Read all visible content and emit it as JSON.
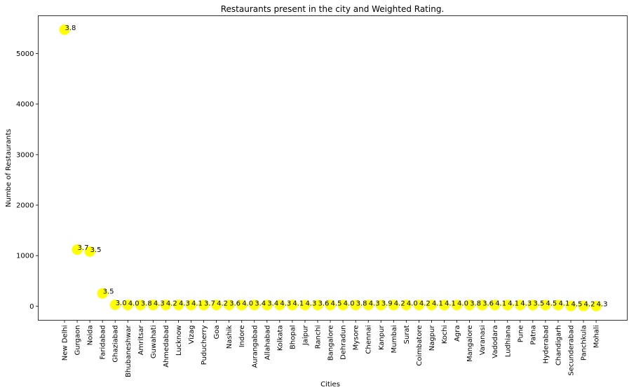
{
  "chart_data": {
    "type": "scatter",
    "title": "Restaurants present in the city and Weighted Rating.",
    "xlabel": "Cities",
    "ylabel": "Numbe of Restaurants",
    "ylim": [
      -280,
      5750
    ],
    "yticks": [
      0,
      1000,
      2000,
      3000,
      4000,
      5000
    ],
    "grid": false,
    "marker_color": "#ffff00",
    "categories": [
      "New Delhi",
      "Gurgaon",
      "Noida",
      "Faridabad",
      "Ghaziabad",
      "Bhubaneshwar",
      "Amritsar",
      "Guwahati",
      "Ahmedabad",
      "Lucknow",
      "Vizag",
      "Puducherry",
      "Goa",
      "Nashik",
      "Indore",
      "Aurangabad",
      "Allahabad",
      "Kolkata",
      "Bhopal",
      "Jaipur",
      "Ranchi",
      "Bangalore",
      "Dehradun",
      "Mysore",
      "Chennai",
      "Kanpur",
      "Mumbai",
      "Surat",
      "Coimbatore",
      "Nagpur",
      "Kochi",
      "Agra",
      "Mangalore",
      "Varanasi",
      "Vadodara",
      "Ludhiana",
      "Pune",
      "Patna",
      "Hyderabad",
      "Chandigarh",
      "Secunderabad",
      "Panchkula",
      "Mohali"
    ],
    "values": [
      5473,
      1118,
      1080,
      251,
      25,
      21,
      21,
      21,
      21,
      21,
      20,
      20,
      20,
      20,
      20,
      20,
      20,
      20,
      20,
      20,
      20,
      20,
      20,
      20,
      20,
      20,
      20,
      20,
      20,
      20,
      20,
      20,
      20,
      20,
      20,
      20,
      20,
      20,
      18,
      18,
      2,
      1,
      1
    ],
    "labels": [
      "3.8",
      "3.7",
      "3.5",
      "3.5",
      "3.0",
      "4.0",
      "3.8",
      "4.3",
      "4.2",
      "4.3",
      "4.1",
      "3.7",
      "4.2",
      "3.6",
      "4.0",
      "3.4",
      "3.4",
      "4.3",
      "4.1",
      "4.3",
      "3.6",
      "4.5",
      "4.0",
      "3.8",
      "4.3",
      "3.9",
      "4.2",
      "4.0",
      "4.2",
      "4.1",
      "4.1",
      "4.0",
      "3.8",
      "3.6",
      "4.1",
      "4.1",
      "4.3",
      "3.5",
      "4.5",
      "4.1",
      "4.5",
      "4.2",
      "4.3"
    ]
  }
}
